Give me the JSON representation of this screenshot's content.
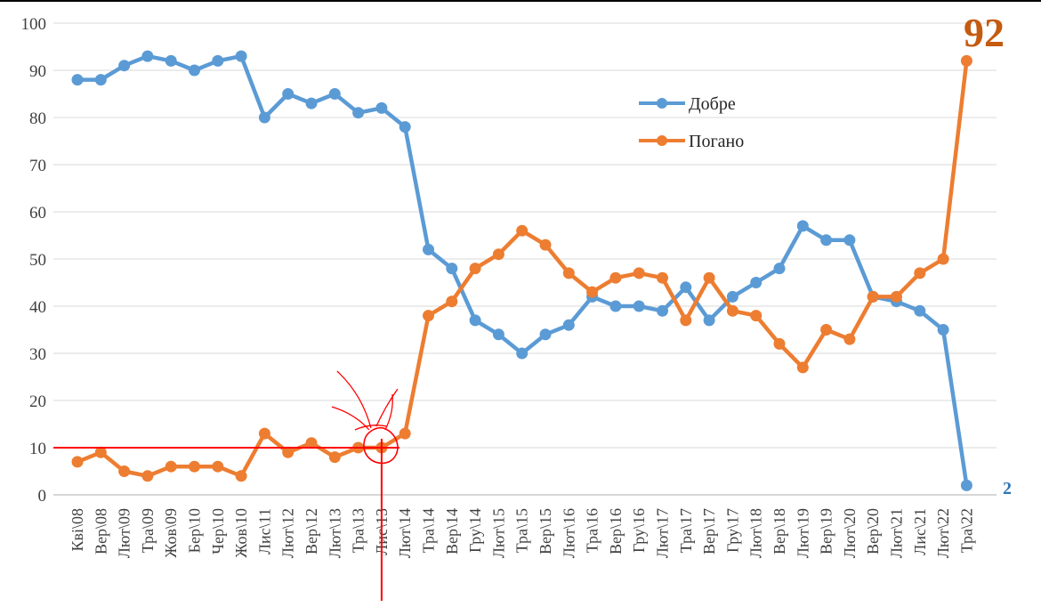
{
  "colors": {
    "good": "#5b9bd5",
    "bad": "#ed7d31",
    "grid": "#d9d9d9",
    "annotation": "#ff0000",
    "callout_big": "#c55a11",
    "callout_small": "#2e75b6"
  },
  "callouts": {
    "last_bad": "92",
    "last_good": "2"
  },
  "chart_data": {
    "type": "line",
    "categories": [
      "Кві\\08",
      "Вер\\08",
      "Лют\\09",
      "Тра\\09",
      "Жов\\09",
      "Бер\\10",
      "Чер\\10",
      "Жов\\10",
      "Лис\\11",
      "Лют\\12",
      "Вер\\12",
      "Лют\\13",
      "Тра\\13",
      "Лис\\13",
      "Лют\\14",
      "Тра\\14",
      "Вер\\14",
      "Гру\\14",
      "Лют\\15",
      "Тра\\15",
      "Вер\\15",
      "Лют\\16",
      "Тра\\16",
      "Вер\\16",
      "Гру\\16",
      "Лют\\17",
      "Тра\\17",
      "Вер\\17",
      "Гру\\17",
      "Лют\\18",
      "Вер\\18",
      "Лют\\19",
      "Вер\\19",
      "Лют\\20",
      "Вер\\20",
      "Лют\\21",
      "Лис\\21",
      "Лют\\22",
      "Тра\\22"
    ],
    "series": [
      {
        "name": "Добре",
        "color": "#5b9bd5",
        "values": [
          88,
          88,
          91,
          93,
          92,
          90,
          92,
          93,
          80,
          85,
          83,
          85,
          81,
          82,
          78,
          52,
          48,
          37,
          34,
          30,
          34,
          36,
          42,
          40,
          40,
          39,
          44,
          37,
          42,
          45,
          48,
          57,
          54,
          54,
          42,
          41,
          39,
          35,
          2
        ]
      },
      {
        "name": "Погано",
        "color": "#ed7d31",
        "values": [
          7,
          9,
          5,
          4,
          6,
          6,
          6,
          4,
          13,
          9,
          11,
          8,
          10,
          10,
          13,
          38,
          41,
          48,
          51,
          56,
          53,
          47,
          43,
          46,
          47,
          46,
          37,
          46,
          39,
          38,
          32,
          27,
          35,
          33,
          42,
          42,
          47,
          50,
          92
        ]
      }
    ],
    "ylim": [
      0,
      100
    ],
    "yticks": [
      0,
      10,
      20,
      30,
      40,
      50,
      60,
      70,
      80,
      90,
      100
    ],
    "grid": true,
    "legend_position": "top-right",
    "annotation": {
      "type": "hand-drawn",
      "reference_y": 10,
      "category": "Лис\\13"
    }
  }
}
